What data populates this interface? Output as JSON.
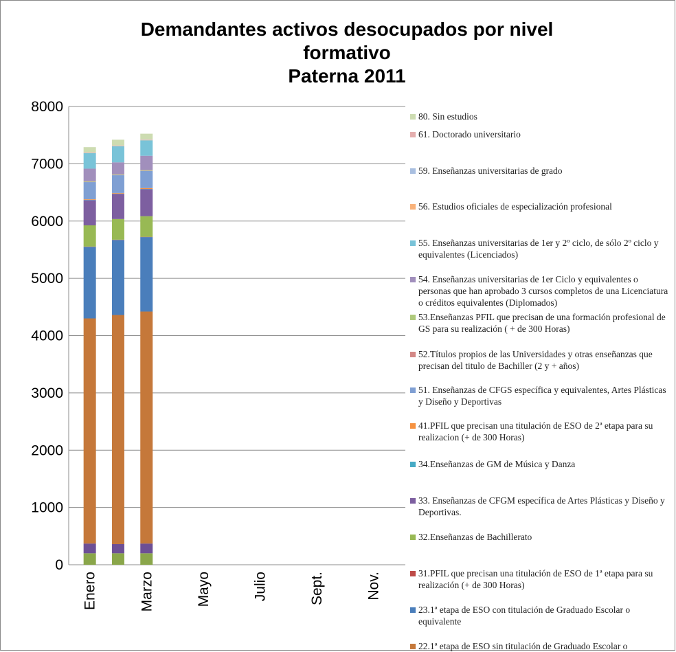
{
  "chart_data": {
    "type": "bar",
    "title": [
      "Demandantes activos desocupados por nivel",
      "formativo",
      "Paterna 2011"
    ],
    "categories": [
      "Enero",
      null,
      "Marzo",
      null,
      "Mayo",
      null,
      "Julio",
      null,
      "Sept.",
      null,
      "Nov.",
      null
    ],
    "ylim": [
      0,
      8000
    ],
    "yticks": [
      0,
      1000,
      2000,
      3000,
      4000,
      5000,
      6000,
      7000,
      8000
    ],
    "grid": true,
    "stacked": true,
    "series": [
      {
        "name": null,
        "color": "#8aa64a",
        "values": [
          200,
          200,
          200,
          null,
          null,
          null,
          null,
          null,
          null,
          null,
          null,
          null
        ]
      },
      {
        "name": null,
        "color": "#6d4f95",
        "values": [
          170,
          160,
          170,
          null,
          null,
          null,
          null,
          null,
          null,
          null,
          null,
          null
        ]
      },
      {
        "name": "22.1ª etapa de ESO sin titulación de Graduado Escolar o",
        "color": "#c5783a",
        "values": [
          3930,
          4000,
          4050,
          null,
          null,
          null,
          null,
          null,
          null,
          null,
          null,
          null
        ]
      },
      {
        "name": "23.1ª etapa de ESO con titulación de Graduado Escolar o equivalente",
        "color": "#4a7ebb",
        "values": [
          1250,
          1310,
          1300,
          null,
          null,
          null,
          null,
          null,
          null,
          null,
          null,
          null
        ]
      },
      {
        "name": "31.PFIL que precisan una titulación de ESO de 1ª etapa para su realización (+ de 300 Horas)",
        "color": "#be4b48",
        "values": [
          5,
          5,
          5,
          null,
          null,
          null,
          null,
          null,
          null,
          null,
          null,
          null
        ]
      },
      {
        "name": "32.Enseñanzas de Bachillerato",
        "color": "#98b954",
        "values": [
          370,
          360,
          360,
          null,
          null,
          null,
          null,
          null,
          null,
          null,
          null,
          null
        ]
      },
      {
        "name": "33. Enseñanzas de CFGM específica de Artes Plásticas y Diseño y Deportivas.",
        "color": "#7d5fa0",
        "values": [
          440,
          440,
          470,
          null,
          null,
          null,
          null,
          null,
          null,
          null,
          null,
          null
        ]
      },
      {
        "name": "34.Enseñanzas de GM de Música y Danza",
        "color": "#46aac5",
        "values": [
          5,
          5,
          5,
          null,
          null,
          null,
          null,
          null,
          null,
          null,
          null,
          null
        ]
      },
      {
        "name": "41.PFIL que precisan una titulación de ESO de 2ª etapa para su realizacion (+ de 300 Horas)",
        "color": "#f69240",
        "values": [
          10,
          10,
          15,
          null,
          null,
          null,
          null,
          null,
          null,
          null,
          null,
          null
        ]
      },
      {
        "name": "51. Enseñanzas de CFGS específica y equivalentes, Artes Plásticas y Diseño y Deportivas",
        "color": "#7f9fd3",
        "values": [
          300,
          310,
          300,
          null,
          null,
          null,
          null,
          null,
          null,
          null,
          null,
          null
        ]
      },
      {
        "name": "52.Títulos propios de las Universidades y otras enseñanzas que precisan del titulo de Bachiller (2 y + años)",
        "color": "#d38886",
        "values": [
          5,
          5,
          5,
          null,
          null,
          null,
          null,
          null,
          null,
          null,
          null,
          null
        ]
      },
      {
        "name": "53.Enseñanzas PFIL que precisan de una formación profesional de GS para su realización ( + de 300 Horas)",
        "color": "#afca7c",
        "values": [
          10,
          10,
          10,
          null,
          null,
          null,
          null,
          null,
          null,
          null,
          null,
          null
        ]
      },
      {
        "name": "54. Enseñanzas universitarias de 1er Ciclo y equivalentes o personas que han aprobado 3 cursos completos de una Licenciatura o créditos equivalentes (Diplomados)",
        "color": "#a18fbc",
        "values": [
          220,
          210,
          250,
          null,
          null,
          null,
          null,
          null,
          null,
          null,
          null,
          null
        ]
      },
      {
        "name": "55. Enseñanzas universitarias de 1er y 2º ciclo, de sólo 2º ciclo y equivalentes (Licenciados)",
        "color": "#79c3d8",
        "values": [
          270,
          280,
          270,
          null,
          null,
          null,
          null,
          null,
          null,
          null,
          null,
          null
        ]
      },
      {
        "name": "56. Estudios oficiales de especialización profesional",
        "color": "#f9b27a",
        "values": [
          5,
          5,
          5,
          null,
          null,
          null,
          null,
          null,
          null,
          null,
          null,
          null
        ]
      },
      {
        "name": "59. Enseñanzas universitarias de grado",
        "color": "#a9bfe0",
        "values": [
          5,
          5,
          5,
          null,
          null,
          null,
          null,
          null,
          null,
          null,
          null,
          null
        ]
      },
      {
        "name": "61. Doctorado universitario",
        "color": "#e4aeae",
        "values": [
          5,
          5,
          5,
          null,
          null,
          null,
          null,
          null,
          null,
          null,
          null,
          null
        ]
      },
      {
        "name": "80. Sin estudios",
        "color": "#cddcb1",
        "values": [
          90,
          100,
          100,
          null,
          null,
          null,
          null,
          null,
          null,
          null,
          null,
          null
        ]
      }
    ]
  }
}
